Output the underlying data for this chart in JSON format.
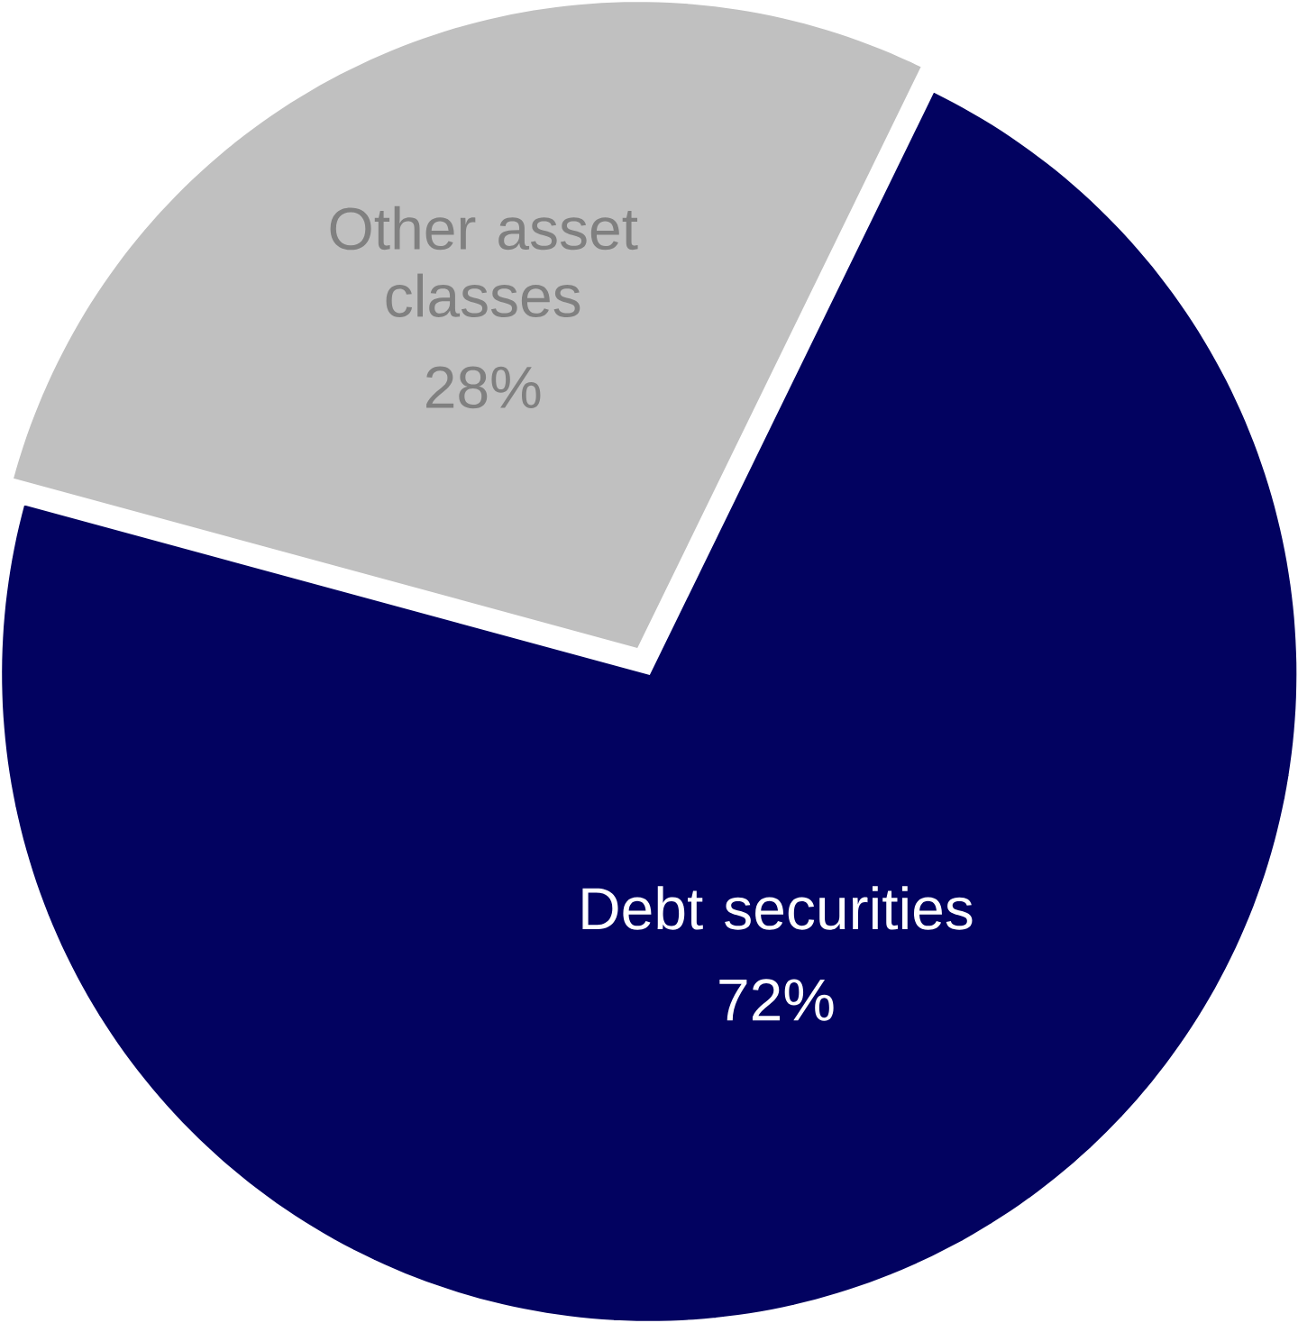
{
  "chart_data": {
    "type": "pie",
    "categories": [
      "Debt securities",
      "Other asset classes"
    ],
    "values": [
      72,
      28
    ],
    "colors": [
      "#020260",
      "#c0c0c0"
    ],
    "value_labels": [
      "72%",
      "28%"
    ]
  }
}
